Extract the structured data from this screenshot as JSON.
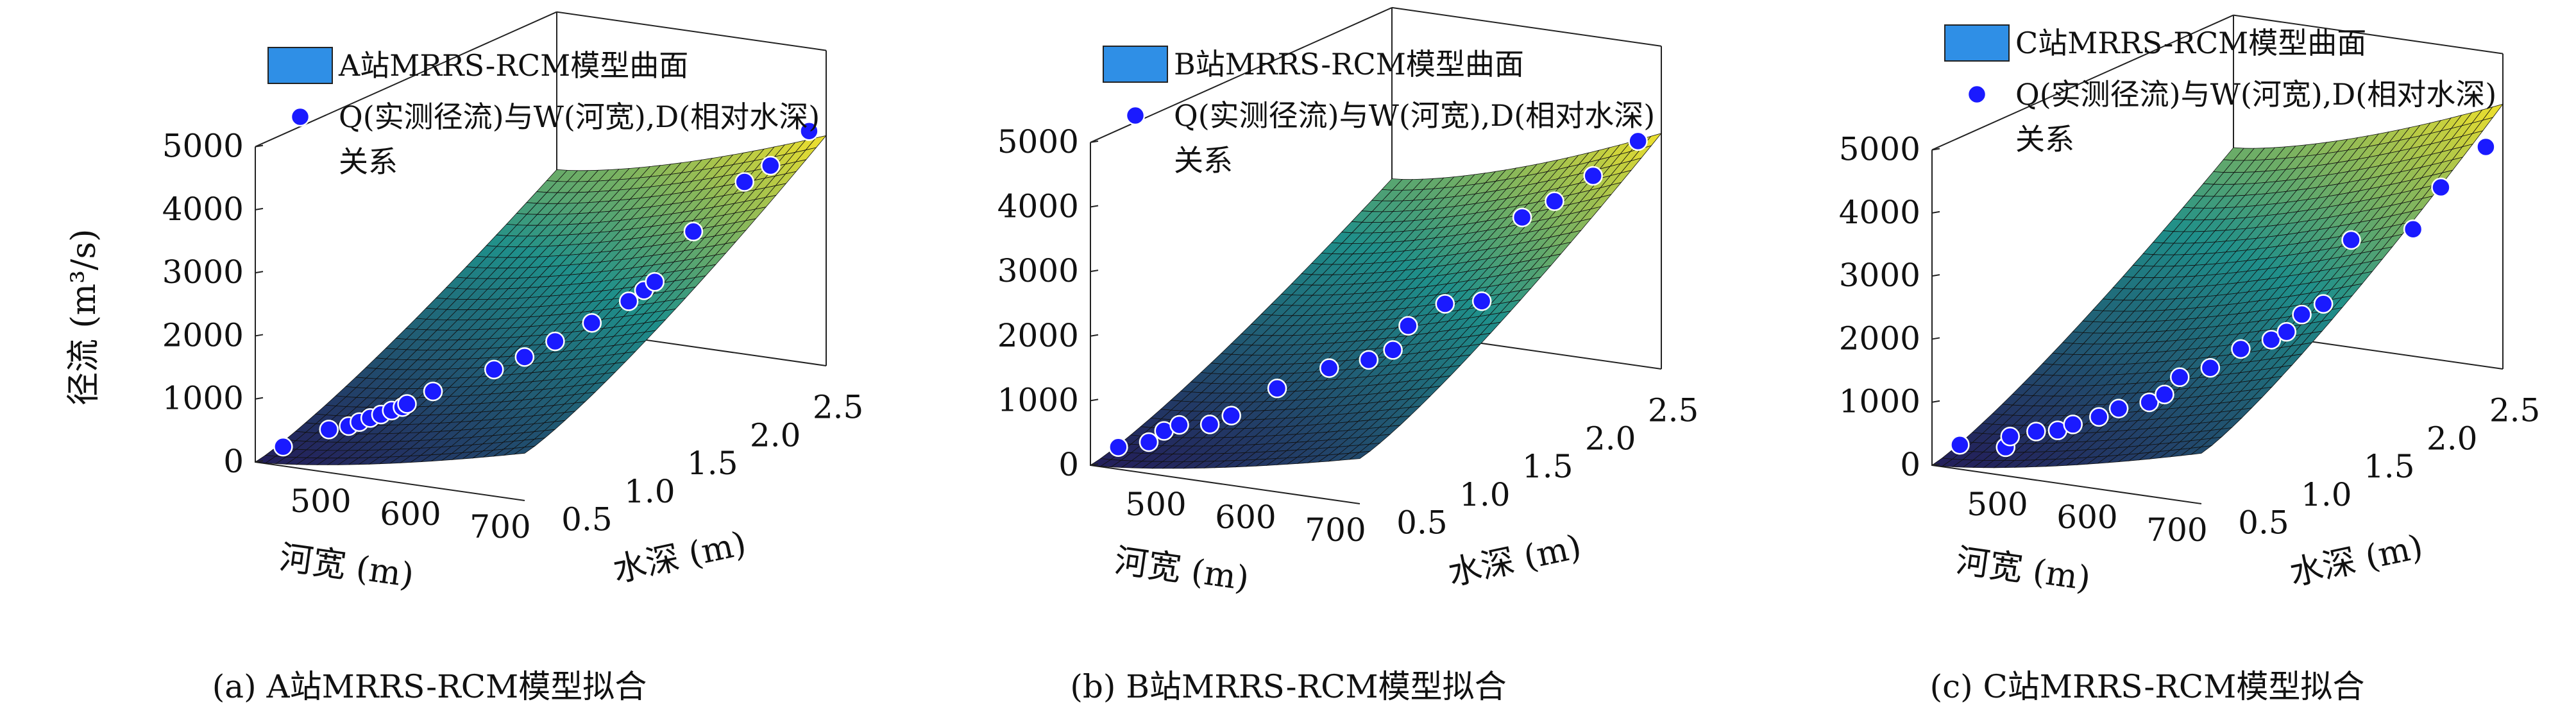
{
  "colors": {
    "surface_low": "#231f5a",
    "surface_mid": "#1f8f8a",
    "surface_high": "#f2e12b",
    "point_fill": "#1a1aff",
    "legend_patch": "#2f8fe6"
  },
  "captions": [
    "(a) A站MRRS-RCM模型拟合",
    "(b) B站MRRS-RCM模型拟合",
    "(c) C站MRRS-RCM模型拟合"
  ],
  "chart_data": [
    {
      "type": "surface3d",
      "zlabel": "径流 (m³/s)",
      "xlabel": "河宽 (m)",
      "ylabel": "水深 (m)",
      "xticks": [
        "500",
        "600",
        "700"
      ],
      "yticks": [
        "0.5",
        "1.0",
        "1.5",
        "2.0",
        "2.5"
      ],
      "zticks": [
        "0",
        "1000",
        "2000",
        "3000",
        "4000",
        "5000"
      ],
      "xlim": [
        420,
        720
      ],
      "ylim": [
        0.3,
        2.7
      ],
      "zlim": [
        0,
        5000
      ],
      "legend": [
        "A站MRRS-RCM模型曲面",
        "Q(实测径流)与W(河宽),D(相对水深)",
        "关系"
      ],
      "surface": {
        "z00": 0,
        "z10": 750,
        "z01": 2500,
        "z11": 3650
      },
      "points": [
        {
          "x": 430,
          "y": 0.45,
          "z": 130
        },
        {
          "x": 460,
          "y": 0.6,
          "z": 330
        },
        {
          "x": 475,
          "y": 0.65,
          "z": 370
        },
        {
          "x": 480,
          "y": 0.7,
          "z": 400
        },
        {
          "x": 485,
          "y": 0.75,
          "z": 430
        },
        {
          "x": 490,
          "y": 0.8,
          "z": 450
        },
        {
          "x": 495,
          "y": 0.85,
          "z": 480
        },
        {
          "x": 500,
          "y": 0.9,
          "z": 500
        },
        {
          "x": 505,
          "y": 0.9,
          "z": 560
        },
        {
          "x": 520,
          "y": 1.0,
          "z": 700
        },
        {
          "x": 560,
          "y": 1.2,
          "z": 950
        },
        {
          "x": 580,
          "y": 1.3,
          "z": 1100
        },
        {
          "x": 600,
          "y": 1.4,
          "z": 1300
        },
        {
          "x": 620,
          "y": 1.55,
          "z": 1500
        },
        {
          "x": 640,
          "y": 1.7,
          "z": 1750
        },
        {
          "x": 650,
          "y": 1.75,
          "z": 1900
        },
        {
          "x": 655,
          "y": 1.8,
          "z": 2000
        },
        {
          "x": 670,
          "y": 2.0,
          "z": 2650
        },
        {
          "x": 685,
          "y": 2.3,
          "z": 3200
        },
        {
          "x": 700,
          "y": 2.4,
          "z": 3400
        },
        {
          "x": 715,
          "y": 2.6,
          "z": 3800
        }
      ]
    },
    {
      "type": "surface3d",
      "zlabel": "",
      "xlabel": "河宽 (m)",
      "ylabel": "水深 (m)",
      "xticks": [
        "500",
        "600",
        "700"
      ],
      "yticks": [
        "0.5",
        "1.0",
        "1.5",
        "2.0",
        "2.5"
      ],
      "zticks": [
        "0",
        "1000",
        "2000",
        "3000",
        "4000",
        "5000"
      ],
      "xlim": [
        420,
        720
      ],
      "ylim": [
        0.3,
        2.7
      ],
      "zlim": [
        0,
        5000
      ],
      "legend": [
        "B站MRRS-RCM模型曲面",
        "Q(实测径流)与W(河宽),D(相对水深)",
        "关系"
      ],
      "surface": {
        "z00": 0,
        "z10": 700,
        "z01": 2350,
        "z11": 3650
      },
      "points": [
        {
          "x": 430,
          "y": 0.45,
          "z": 170
        },
        {
          "x": 450,
          "y": 0.55,
          "z": 200
        },
        {
          "x": 460,
          "y": 0.6,
          "z": 350
        },
        {
          "x": 470,
          "y": 0.65,
          "z": 420
        },
        {
          "x": 490,
          "y": 0.75,
          "z": 380
        },
        {
          "x": 500,
          "y": 0.85,
          "z": 450
        },
        {
          "x": 530,
          "y": 1.0,
          "z": 800
        },
        {
          "x": 560,
          "y": 1.2,
          "z": 1000
        },
        {
          "x": 590,
          "y": 1.3,
          "z": 1100
        },
        {
          "x": 610,
          "y": 1.35,
          "z": 1250
        },
        {
          "x": 620,
          "y": 1.4,
          "z": 1600
        },
        {
          "x": 640,
          "y": 1.55,
          "z": 1850
        },
        {
          "x": 660,
          "y": 1.7,
          "z": 1800
        },
        {
          "x": 670,
          "y": 1.95,
          "z": 2900
        },
        {
          "x": 685,
          "y": 2.1,
          "z": 3050
        },
        {
          "x": 700,
          "y": 2.3,
          "z": 3300
        },
        {
          "x": 715,
          "y": 2.55,
          "z": 3650
        }
      ]
    },
    {
      "type": "surface3d",
      "zlabel": "",
      "xlabel": "河宽 (m)",
      "ylabel": "水深 (m)",
      "xticks": [
        "500",
        "600",
        "700"
      ],
      "yticks": [
        "0.5",
        "1.0",
        "1.5",
        "2.0",
        "2.5"
      ],
      "zticks": [
        "0",
        "1000",
        "2000",
        "3000",
        "4000",
        "5000"
      ],
      "xlim": [
        420,
        720
      ],
      "ylim": [
        0.3,
        2.7
      ],
      "zlim": [
        0,
        5000
      ],
      "legend": [
        "C站MRRS-RCM模型曲面",
        "Q(实测径流)与W(河宽),D(相对水深)",
        "关系"
      ],
      "surface": {
        "z00": 0,
        "z10": 800,
        "z01": 2900,
        "z11": 4200
      },
      "points": [
        {
          "x": 430,
          "y": 0.45,
          "z": 210
        },
        {
          "x": 460,
          "y": 0.6,
          "z": 100
        },
        {
          "x": 465,
          "y": 0.6,
          "z": 280
        },
        {
          "x": 480,
          "y": 0.7,
          "z": 300
        },
        {
          "x": 490,
          "y": 0.8,
          "z": 250
        },
        {
          "x": 500,
          "y": 0.85,
          "z": 320
        },
        {
          "x": 515,
          "y": 0.95,
          "z": 380
        },
        {
          "x": 530,
          "y": 1.0,
          "z": 500
        },
        {
          "x": 550,
          "y": 1.1,
          "z": 550
        },
        {
          "x": 560,
          "y": 1.15,
          "z": 650
        },
        {
          "x": 570,
          "y": 1.2,
          "z": 900
        },
        {
          "x": 590,
          "y": 1.3,
          "z": 1000
        },
        {
          "x": 610,
          "y": 1.4,
          "z": 1250
        },
        {
          "x": 630,
          "y": 1.5,
          "z": 1350
        },
        {
          "x": 640,
          "y": 1.55,
          "z": 1450
        },
        {
          "x": 650,
          "y": 1.6,
          "z": 1700
        },
        {
          "x": 660,
          "y": 1.7,
          "z": 1800
        },
        {
          "x": 670,
          "y": 1.85,
          "z": 2700
        },
        {
          "x": 690,
          "y": 2.2,
          "z": 2600
        },
        {
          "x": 700,
          "y": 2.35,
          "z": 3150
        },
        {
          "x": 715,
          "y": 2.6,
          "z": 3600
        }
      ]
    }
  ]
}
